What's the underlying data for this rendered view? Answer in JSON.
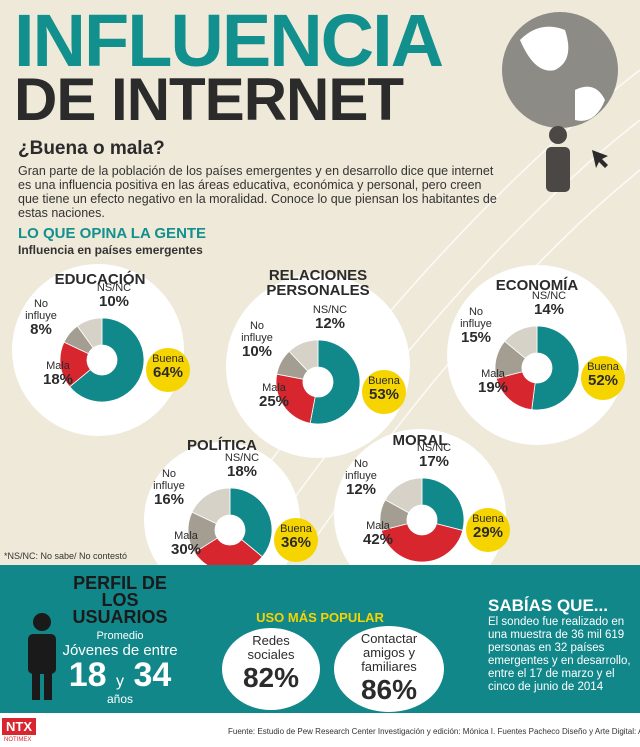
{
  "header": {
    "title_line1": "INFLUENCIA",
    "title_line2": "DE INTERNET",
    "subtitle": "¿Buena o mala?",
    "intro": "Gran parte de la población de los países emergentes y en desarrollo dice que internet es una influencia positiva en las áreas educativa, económica y personal, pero creen que tiene un efecto negativo en la moralidad. Conoce lo que piensan los habitantes de estas naciones."
  },
  "section": {
    "title": "LO QUE OPINA LA GENTE",
    "subtitle": "Influencia en países emergentes"
  },
  "colors": {
    "Buena": "#11898a",
    "Mala": "#d7262e",
    "No influye": "#a39d92",
    "NS/NC": "#d6d2c8"
  },
  "donuts": [
    {
      "title": "EDUCACIÓN",
      "segments": [
        {
          "name": "Buena",
          "value": 64,
          "label": "64%"
        },
        {
          "name": "Mala",
          "value": 18,
          "label": "18%"
        },
        {
          "name": "No influye",
          "value": 8,
          "label": "8%"
        },
        {
          "name": "NS/NC",
          "value": 10,
          "label": "10%"
        }
      ]
    },
    {
      "title": "RELACIONES PERSONALES",
      "segments": [
        {
          "name": "Buena",
          "value": 53,
          "label": "53%"
        },
        {
          "name": "Mala",
          "value": 25,
          "label": "25%"
        },
        {
          "name": "No influye",
          "value": 10,
          "label": "10%"
        },
        {
          "name": "NS/NC",
          "value": 12,
          "label": "12%"
        }
      ]
    },
    {
      "title": "ECONOMÍA",
      "segments": [
        {
          "name": "Buena",
          "value": 52,
          "label": "52%"
        },
        {
          "name": "Mala",
          "value": 19,
          "label": "19%"
        },
        {
          "name": "No influye",
          "value": 15,
          "label": "15%"
        },
        {
          "name": "NS/NC",
          "value": 14,
          "label": "14%"
        }
      ]
    },
    {
      "title": "POLÍTICA",
      "segments": [
        {
          "name": "Buena",
          "value": 36,
          "label": "36%"
        },
        {
          "name": "Mala",
          "value": 30,
          "label": "30%"
        },
        {
          "name": "No influye",
          "value": 16,
          "label": "16%"
        },
        {
          "name": "NS/NC",
          "value": 18,
          "label": "18%"
        }
      ]
    },
    {
      "title": "MORAL",
      "segments": [
        {
          "name": "Buena",
          "value": 29,
          "label": "29%"
        },
        {
          "name": "Mala",
          "value": 42,
          "label": "42%"
        },
        {
          "name": "No influye",
          "value": 12,
          "label": "12%"
        },
        {
          "name": "NS/NC",
          "value": 17,
          "label": "17%"
        }
      ]
    }
  ],
  "footnote": "*NS/NC: No sabe/ No contestó",
  "profile": {
    "title": "PERFIL DE LOS USUARIOS",
    "average": "Promedio",
    "text": "Jóvenes de entre",
    "from": "18",
    "joiner": "y",
    "to": "34",
    "unit": "años"
  },
  "usage": {
    "title": "USO MÁS POPULAR",
    "items": [
      {
        "name": "Redes sociales",
        "value": "82%"
      },
      {
        "name": "Contactar amigos y familiares",
        "value": "86%"
      }
    ]
  },
  "facts": {
    "title": "SABÍAS QUE...",
    "text": "El sondeo fue realizado en una muestra de 36 mil 619 personas en 32 países emergentes y en desarrollo, entre el 17 de marzo y el cinco de junio de 2014"
  },
  "footer": {
    "credits": "Fuente: Estudio de Pew Research Center  Investigación y edición: Mónica I. Fuentes Pacheco  Diseño y Arte Digital: Alberto Nava Consultora",
    "logo": "NTX",
    "agency": "NOTIMEX"
  }
}
